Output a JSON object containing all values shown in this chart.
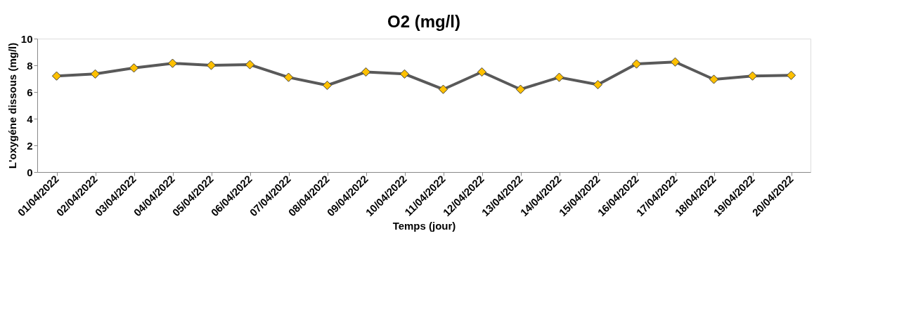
{
  "chart_data": {
    "type": "line",
    "title": "O2 (mg/l)",
    "xlabel": "Temps (jour)",
    "ylabel": "L'oxygéne dissous (mg/l)",
    "categories": [
      "01/04/2022",
      "02/04/2022",
      "03/04/2022",
      "04/04/2022",
      "05/04/2022",
      "06/04/2022",
      "07/04/2022",
      "08/04/2022",
      "09/04/2022",
      "10/04/2022",
      "11/04/2022",
      "12/04/2022",
      "13/04/2022",
      "14/04/2022",
      "15/04/2022",
      "16/04/2022",
      "17/04/2022",
      "18/04/2022",
      "19/04/2022",
      "20/04/2022"
    ],
    "series": [
      {
        "color": "#595959",
        "values": [
          7.2,
          7.35,
          7.8,
          8.15,
          8.0,
          8.05,
          7.1,
          6.5,
          7.5,
          7.35,
          6.2,
          7.5,
          6.2,
          7.1,
          6.55,
          8.1,
          8.25,
          6.95,
          7.2,
          7.25
        ]
      }
    ],
    "ylim": [
      0,
      10
    ],
    "yticks": [
      0,
      2,
      4,
      6,
      8,
      10
    ],
    "grid": false,
    "marker": "diamond",
    "line_style": "solid"
  }
}
